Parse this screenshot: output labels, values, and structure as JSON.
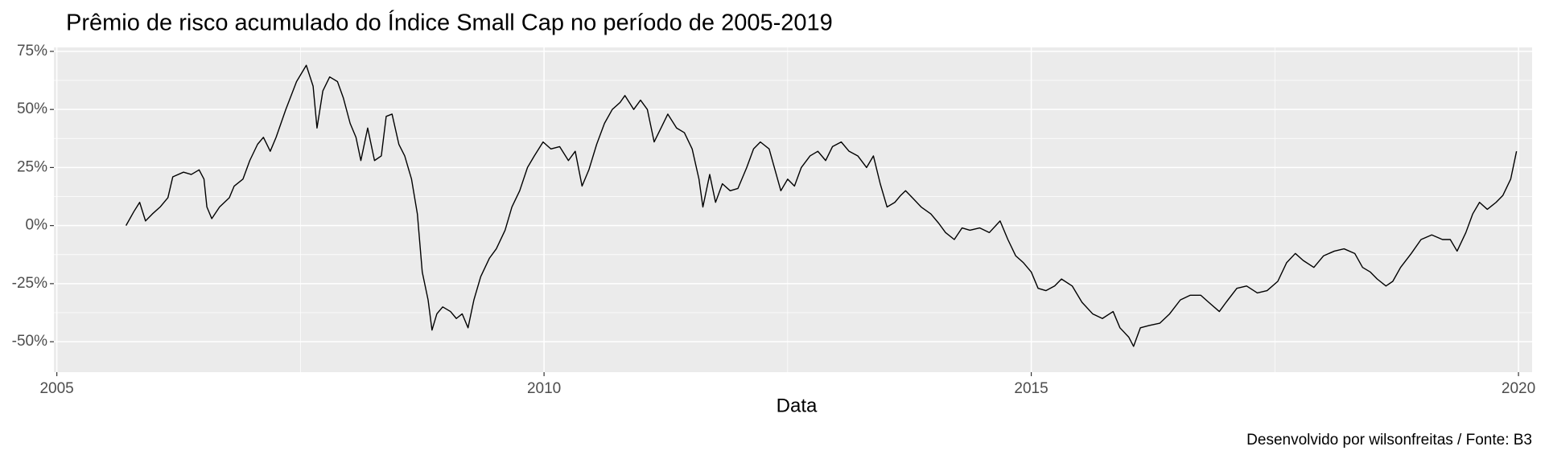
{
  "chart_data": {
    "type": "line",
    "title": "Prêmio de risco acumulado do Índice Small Cap no período de 2005-2019",
    "x_label": "Data",
    "caption": "Desenvolvido por wilsonfreitas / Fonte: B3",
    "color": "#000000",
    "grid": true,
    "xlim": [
      2004.97,
      2020.14
    ],
    "ylim": [
      -63.1,
      76.7
    ],
    "xticks": [
      2005,
      2010,
      2015,
      2020
    ],
    "yticks": [
      {
        "value": -50,
        "label": "-50%"
      },
      {
        "value": -25,
        "label": "-25%"
      },
      {
        "value": 0,
        "label": "0%"
      },
      {
        "value": 25,
        "label": "25%"
      },
      {
        "value": 50,
        "label": "50%"
      },
      {
        "value": 75,
        "label": "75%"
      }
    ],
    "x": [
      2005.71,
      2005.79,
      2005.85,
      2005.91,
      2005.98,
      2006.06,
      2006.14,
      2006.19,
      2006.3,
      2006.38,
      2006.46,
      2006.51,
      2006.54,
      2006.59,
      2006.67,
      2006.77,
      2006.82,
      2006.91,
      2006.98,
      2007.06,
      2007.12,
      2007.19,
      2007.25,
      2007.35,
      2007.46,
      2007.56,
      2007.63,
      2007.67,
      2007.73,
      2007.8,
      2007.88,
      2007.94,
      2008.01,
      2008.07,
      2008.12,
      2008.19,
      2008.26,
      2008.33,
      2008.38,
      2008.44,
      2008.51,
      2008.57,
      2008.64,
      2008.7,
      2008.75,
      2008.81,
      2008.85,
      2008.9,
      2008.96,
      2009.04,
      2009.1,
      2009.16,
      2009.22,
      2009.28,
      2009.35,
      2009.44,
      2009.51,
      2009.6,
      2009.67,
      2009.75,
      2009.83,
      2009.9,
      2009.99,
      2010.07,
      2010.16,
      2010.25,
      2010.32,
      2010.39,
      2010.46,
      2010.54,
      2010.62,
      2010.7,
      2010.78,
      2010.83,
      2010.92,
      2010.99,
      2011.06,
      2011.13,
      2011.2,
      2011.27,
      2011.36,
      2011.44,
      2011.52,
      2011.59,
      2011.63,
      2011.7,
      2011.76,
      2011.83,
      2011.91,
      2011.99,
      2012.08,
      2012.15,
      2012.22,
      2012.31,
      2012.37,
      2012.43,
      2012.5,
      2012.57,
      2012.64,
      2012.73,
      2012.81,
      2012.89,
      2012.96,
      2013.05,
      2013.13,
      2013.22,
      2013.31,
      2013.38,
      2013.45,
      2013.52,
      2013.6,
      2013.66,
      2013.71,
      2013.78,
      2013.87,
      2013.97,
      2014.05,
      2014.12,
      2014.21,
      2014.29,
      2014.37,
      2014.47,
      2014.57,
      2014.68,
      2014.76,
      2014.84,
      2014.92,
      2015.0,
      2015.07,
      2015.15,
      2015.24,
      2015.31,
      2015.42,
      2015.52,
      2015.63,
      2015.73,
      2015.84,
      2015.91,
      2016.0,
      2016.05,
      2016.12,
      2016.21,
      2016.32,
      2016.42,
      2016.53,
      2016.63,
      2016.74,
      2016.82,
      2016.93,
      2017.0,
      2017.11,
      2017.21,
      2017.32,
      2017.42,
      2017.53,
      2017.62,
      2017.71,
      2017.79,
      2017.9,
      2018.0,
      2018.11,
      2018.21,
      2018.32,
      2018.4,
      2018.48,
      2018.55,
      2018.64,
      2018.71,
      2018.79,
      2018.9,
      2019.0,
      2019.11,
      2019.22,
      2019.3,
      2019.37,
      2019.46,
      2019.53,
      2019.6,
      2019.68,
      2019.77,
      2019.84,
      2019.92,
      2019.98
    ],
    "values": [
      0,
      6,
      10,
      2,
      5,
      8,
      12,
      21,
      23,
      22,
      24,
      20,
      8,
      3,
      8,
      12,
      17,
      20,
      28,
      35,
      38,
      32,
      38,
      50,
      62,
      69,
      60,
      42,
      58,
      64,
      62,
      55,
      44,
      38,
      28,
      42,
      28,
      30,
      47,
      48,
      35,
      30,
      20,
      5,
      -20,
      -32,
      -45,
      -38,
      -35,
      -37,
      -40,
      -38,
      -44,
      -32,
      -22,
      -14,
      -10,
      -2,
      8,
      15,
      25,
      30,
      36,
      33,
      34,
      28,
      32,
      17,
      24,
      35,
      44,
      50,
      53,
      56,
      50,
      54,
      50,
      36,
      42,
      48,
      42,
      40,
      33,
      20,
      8,
      22,
      10,
      18,
      15,
      16,
      25,
      33,
      36,
      33,
      24,
      15,
      20,
      17,
      25,
      30,
      32,
      28,
      34,
      36,
      32,
      30,
      25,
      30,
      18,
      8,
      10,
      13,
      15,
      12,
      8,
      5,
      1,
      -3,
      -6,
      -1,
      -2,
      -1,
      -3,
      2,
      -6,
      -13,
      -16,
      -20,
      -27,
      -28,
      -26,
      -23,
      -26,
      -33,
      -38,
      -40,
      -37,
      -44,
      -48,
      -52,
      -44,
      -43,
      -42,
      -38,
      -32,
      -30,
      -30,
      -33,
      -37,
      -33,
      -27,
      -26,
      -29,
      -28,
      -24,
      -16,
      -12,
      -15,
      -18,
      -13,
      -11,
      -10,
      -12,
      -18,
      -20,
      -23,
      -26,
      -24,
      -18,
      -12,
      -6,
      -4,
      -6,
      -6,
      -11,
      -3,
      5,
      10,
      7,
      10,
      13,
      20,
      32
    ]
  }
}
